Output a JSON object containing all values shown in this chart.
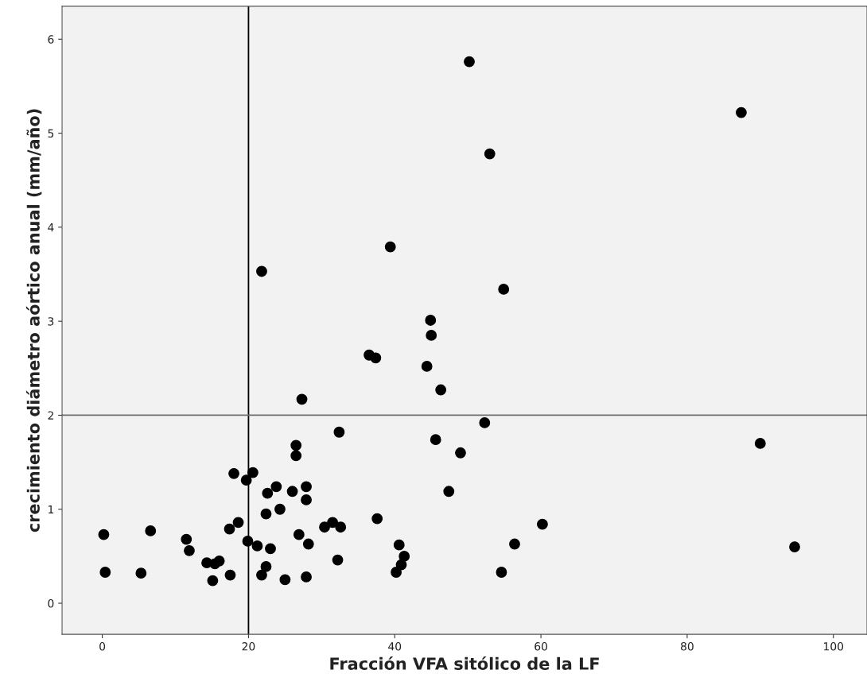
{
  "chart_data": {
    "type": "scatter",
    "xlabel": "Fracción VFA sitólico de la LF",
    "ylabel": "crecimiento diámetro aórtico anual (mm/año)",
    "x": [
      0.2,
      0.4,
      5.3,
      6.6,
      11.5,
      11.9,
      14.3,
      15.4,
      16,
      15.1,
      17.5,
      17.4,
      18,
      18.6,
      19.7,
      20.6,
      19.9,
      21.2,
      21.8,
      21.8,
      22.4,
      22.4,
      22.6,
      23,
      23.8,
      24.3,
      25,
      26,
      26.5,
      26.5,
      26.9,
      27.3,
      27.9,
      27.9,
      27.9,
      28.2,
      30.4,
      31.5,
      32.6,
      32.2,
      32.4,
      36.5,
      37.4,
      37.6,
      39.4,
      40.2,
      40.6,
      40.9,
      41.3,
      44.4,
      44.9,
      45,
      45.6,
      46.3,
      47.4,
      49,
      50.2,
      52.3,
      53,
      54.6,
      54.9,
      56.4,
      60.2,
      87.4,
      90,
      94.7
    ],
    "series": [
      {
        "color": "#000000",
        "values": [
          0.73,
          0.33,
          0.32,
          0.77,
          0.68,
          0.56,
          0.43,
          0.42,
          0.45,
          0.24,
          0.3,
          0.79,
          1.38,
          0.86,
          1.31,
          1.39,
          0.66,
          0.61,
          3.53,
          0.3,
          0.39,
          0.95,
          1.17,
          0.58,
          1.24,
          1.0,
          0.25,
          1.19,
          1.68,
          1.57,
          0.73,
          2.17,
          1.24,
          1.1,
          0.28,
          0.63,
          0.81,
          0.86,
          0.81,
          0.46,
          1.82,
          2.64,
          2.61,
          0.9,
          3.79,
          0.33,
          0.62,
          0.41,
          0.5,
          2.52,
          3.01,
          2.85,
          1.74,
          2.27,
          1.19,
          1.6,
          5.76,
          1.92,
          4.78,
          0.33,
          3.34,
          0.63,
          0.84,
          5.22,
          1.7,
          0.6
        ]
      }
    ],
    "marker": "circle",
    "xlim": [
      -5.5,
      104.6
    ],
    "ylim": [
      -0.33,
      6.35
    ],
    "xticks": [
      0,
      20,
      40,
      60,
      80,
      100
    ],
    "yticks": [
      0,
      1,
      2,
      3,
      4,
      5,
      6
    ],
    "grid": false,
    "legend": false,
    "ref_lines": [
      {
        "axis": "x",
        "value": 20,
        "color": "#000000"
      },
      {
        "axis": "y",
        "value": 2,
        "color": "#6e6e6e"
      }
    ]
  }
}
